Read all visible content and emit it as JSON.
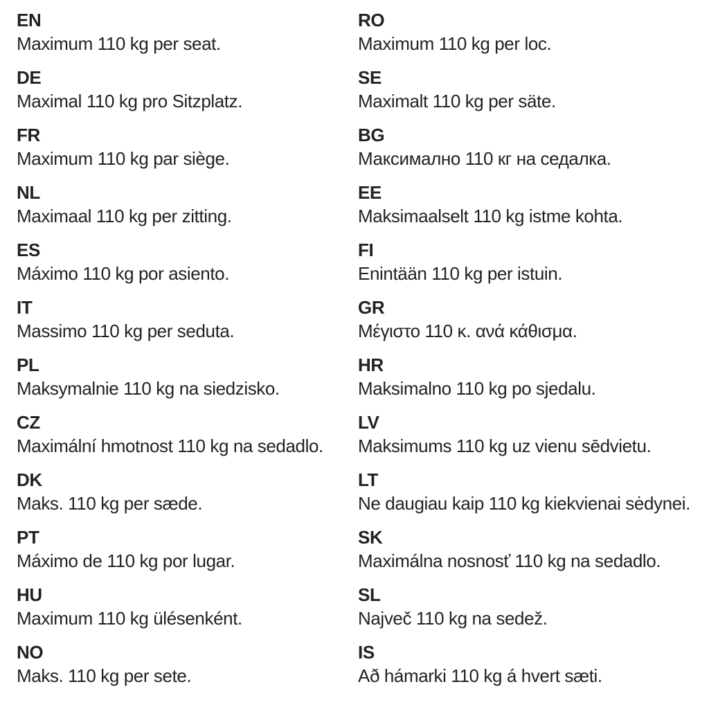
{
  "page": {
    "background_color": "#ffffff",
    "text_color": "#222222"
  },
  "columns": [
    {
      "entries": [
        {
          "code": "EN",
          "text": "Maximum 110 kg per seat."
        },
        {
          "code": "DE",
          "text": "Maximal 110 kg pro Sitzplatz."
        },
        {
          "code": "FR",
          "text": "Maximum 110 kg par siège."
        },
        {
          "code": "NL",
          "text": "Maximaal 110 kg per zitting."
        },
        {
          "code": "ES",
          "text": "Máximo 110 kg por asiento."
        },
        {
          "code": "IT",
          "text": "Massimo 110 kg per seduta."
        },
        {
          "code": "PL",
          "text": "Maksymalnie 110 kg na siedzisko."
        },
        {
          "code": "CZ",
          "text": "Maximální hmotnost 110 kg na sedadlo."
        },
        {
          "code": "DK",
          "text": "Maks. 110 kg per sæde."
        },
        {
          "code": "PT",
          "text": "Máximo de 110 kg por lugar."
        },
        {
          "code": "HU",
          "text": "Maximum 110 kg ülésenként."
        },
        {
          "code": "NO",
          "text": "Maks. 110 kg per sete."
        }
      ]
    },
    {
      "entries": [
        {
          "code": "RO",
          "text": "Maximum 110 kg per loc."
        },
        {
          "code": "SE",
          "text": "Maximalt 110 kg per säte."
        },
        {
          "code": "BG",
          "text": "Максимално 110 кг на седалка."
        },
        {
          "code": "EE",
          "text": "Maksimaalselt 110 kg istme kohta."
        },
        {
          "code": "FI",
          "text": "Enintään 110 kg per istuin."
        },
        {
          "code": "GR",
          "text": "Μέγιστο 110 κ. ανά κάθισμα."
        },
        {
          "code": "HR",
          "text": "Maksimalno 110 kg po sjedalu."
        },
        {
          "code": "LV",
          "text": "Maksimums 110 kg uz vienu sēdvietu."
        },
        {
          "code": "LT",
          "text": "Ne daugiau kaip 110 kg kiekvienai sėdynei."
        },
        {
          "code": "SK",
          "text": "Maximálna nosnosť 110 kg na sedadlo."
        },
        {
          "code": "SL",
          "text": "Največ 110 kg na sedež."
        },
        {
          "code": "IS",
          "text": "Að hámarki 110 kg á hvert sæti."
        }
      ]
    }
  ]
}
